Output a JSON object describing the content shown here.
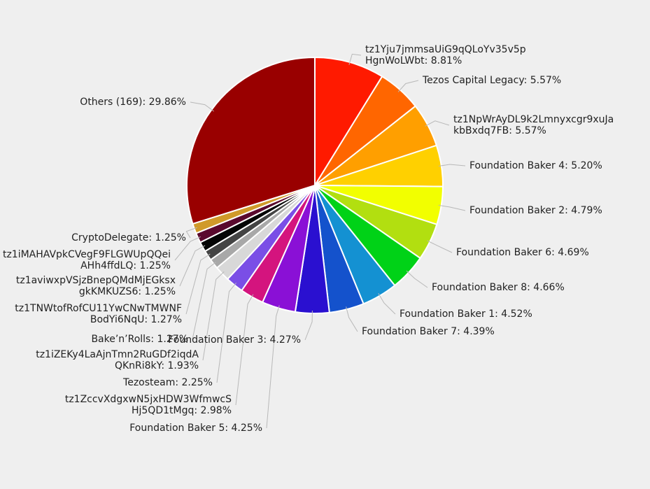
{
  "chart_data": {
    "type": "pie",
    "title": "",
    "slices": [
      {
        "label": "tz1Yju7jmmsaUiG9qQLoYv35v5pHgnWoLWbt",
        "lines": [
          "tz1Yju7jmmsaUiG9qQLoYv35v5p",
          "HgnWoLWbt: 8.81%"
        ],
        "value": 8.81,
        "color": "#ff1a00"
      },
      {
        "label": "Tezos Capital Legacy",
        "lines": [
          "Tezos Capital Legacy: 5.57%"
        ],
        "value": 5.57,
        "color": "#ff6600"
      },
      {
        "label": "tz1NpWrAyDL9k2Lmnyxcgr9xuJakbBxdq7FB",
        "lines": [
          "tz1NpWrAyDL9k2Lmnyxcgr9xuJa",
          "kbBxdq7FB: 5.57%"
        ],
        "value": 5.57,
        "color": "#ff9f00"
      },
      {
        "label": "Foundation Baker 4",
        "lines": [
          "Foundation Baker 4: 5.20%"
        ],
        "value": 5.2,
        "color": "#ffd000"
      },
      {
        "label": "Foundation Baker 2",
        "lines": [
          "Foundation Baker 2: 4.79%"
        ],
        "value": 4.79,
        "color": "#f2ff00"
      },
      {
        "label": "Foundation Baker 6",
        "lines": [
          "Foundation Baker 6: 4.69%"
        ],
        "value": 4.69,
        "color": "#b2df10"
      },
      {
        "label": "Foundation Baker 8",
        "lines": [
          "Foundation Baker 8: 4.66%"
        ],
        "value": 4.66,
        "color": "#00d217"
      },
      {
        "label": "Foundation Baker 1",
        "lines": [
          "Foundation Baker 1: 4.52%"
        ],
        "value": 4.52,
        "color": "#1491d2"
      },
      {
        "label": "Foundation Baker 7",
        "lines": [
          "Foundation Baker 7: 4.39%"
        ],
        "value": 4.39,
        "color": "#1452cc"
      },
      {
        "label": "Foundation Baker 3",
        "lines": [
          "Foundation Baker 3: 4.27%"
        ],
        "value": 4.27,
        "color": "#2a10d0"
      },
      {
        "label": "Foundation Baker 5",
        "lines": [
          "Foundation Baker 5: 4.25%"
        ],
        "value": 4.25,
        "color": "#8a10d6"
      },
      {
        "label": "tz1ZccvXdgxwN5jxHDW3WfmwcSHj5QD1tMgq",
        "lines": [
          "tz1ZccvXdgxwN5jxHDW3WfmwcS",
          "Hj5QD1tMgq: 2.98%"
        ],
        "value": 2.98,
        "color": "#d4147e"
      },
      {
        "label": "Tezosteam",
        "lines": [
          "Tezosteam: 2.25%"
        ],
        "value": 2.25,
        "color": "#7a4ee6"
      },
      {
        "label": "tz1iZEKy4LaAjnTmn2RuGDf2iqdAQKnRi8kY",
        "lines": [
          "tz1iZEKy4LaAjnTmn2RuGDf2iqdA",
          "QKnRi8kY: 1.93%"
        ],
        "value": 1.93,
        "color": "#d8d8d8"
      },
      {
        "label": "Bake'n'Rolls",
        "lines": [
          "Bake’n’Rolls: 1.27%"
        ],
        "value": 1.27,
        "color": "#a8a8a8"
      },
      {
        "label": "tz1TNWtofRofCU11YwCNwTMWNFBodYi6NqU",
        "lines": [
          "tz1TNWtofRofCU11YwCNwTMWNF",
          "BodYi6NqU: 1.27%"
        ],
        "value": 1.27,
        "color": "#444444"
      },
      {
        "label": "tz1aviwxpVSjzBnepQMdMjEGksxgkKMKUZS6",
        "lines": [
          "tz1aviwxpVSjzBnepQMdMjEGksx",
          "gkKMKUZS6: 1.25%"
        ],
        "value": 1.25,
        "color": "#050505"
      },
      {
        "label": "tz1iMAHAVpkCVegF9FLGWUpQQeiAHh4ffdLQ",
        "lines": [
          "tz1iMAHAVpkCVegF9FLGWUpQQei",
          "AHh4ffdLQ: 1.25%"
        ],
        "value": 1.25,
        "color": "#5a0a2e"
      },
      {
        "label": "CryptoDelegate",
        "lines": [
          "CryptoDelegate: 1.25%"
        ],
        "value": 1.25,
        "color": "#d09a2a"
      },
      {
        "label": "Others (169)",
        "lines": [
          "Others (169): 29.86%"
        ],
        "value": 29.86,
        "color": "#990000"
      }
    ]
  }
}
